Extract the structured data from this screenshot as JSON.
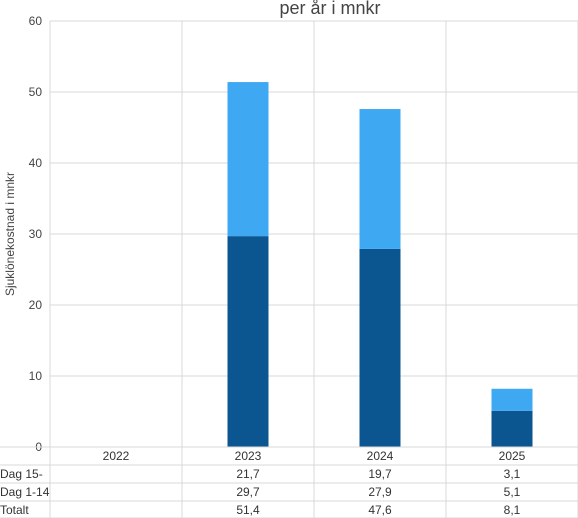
{
  "chart_data": {
    "type": "bar",
    "stacked": true,
    "title": "per år i mnkr",
    "ylabel": "Sjuklönekostnad i mnkr",
    "ylim": [
      0,
      60
    ],
    "yticks": [
      0,
      10,
      20,
      30,
      40,
      50,
      60
    ],
    "grid": true,
    "categories": [
      "2022",
      "2023",
      "2024",
      "2025"
    ],
    "series": [
      {
        "name": "Dag 1-14",
        "values": [
          null,
          29.7,
          27.9,
          5.1
        ],
        "color": "#0b5591"
      },
      {
        "name": "Dag 15-",
        "values": [
          null,
          21.7,
          19.7,
          3.1
        ],
        "color": "#3ea8f2"
      }
    ],
    "table": {
      "rows": [
        {
          "label": "Dag 15-",
          "values": [
            "",
            "21,7",
            "19,7",
            "3,1"
          ]
        },
        {
          "label": "Dag 1-14",
          "values": [
            "",
            "29,7",
            "27,9",
            "5,1"
          ]
        },
        {
          "label": "Totalt",
          "values": [
            "",
            "51,4",
            "47,6",
            "8,1"
          ]
        }
      ]
    }
  }
}
